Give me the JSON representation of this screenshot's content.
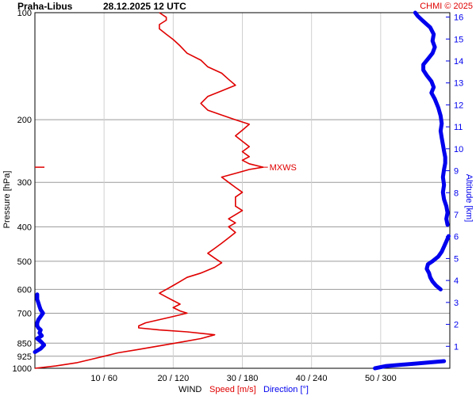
{
  "header": {
    "station": "Praha-Libus",
    "datetime": "28.12.2025 12 UTC",
    "credit": "CHMI © 2025"
  },
  "chart_data": {
    "type": "line",
    "title": "Praha-Libus 28.12.2025 12 UTC",
    "ylabel": "Pressure [hPa]",
    "y2label": "Altitude [km]",
    "xlabel_parts": {
      "wind": "WIND",
      "speed": "Speed [m/s]",
      "direction": "Direction [°]"
    },
    "x_speed_range": [
      0,
      60
    ],
    "x_direction_range": [
      0,
      360
    ],
    "y_pressure_range": [
      1000,
      100
    ],
    "y_scale": "log",
    "grid": true,
    "pressure_ticks": [
      "100",
      "200",
      "300",
      "400",
      "500",
      "600",
      "700",
      "850",
      "925",
      "1000"
    ],
    "x_ticks": [
      "10 / 60",
      "20 / 120",
      "30 / 180",
      "40 / 240",
      "50 / 300"
    ],
    "altitude_ticks": [
      "1",
      "2",
      "3",
      "4",
      "5",
      "6",
      "7",
      "8",
      "9",
      "10",
      "11",
      "12",
      "13",
      "14",
      "15",
      "16"
    ],
    "annotation": {
      "label": "MXWS",
      "pressure": 272,
      "speed": 33
    },
    "series": [
      {
        "name": "Speed [m/s]",
        "color": "#e00000",
        "points": [
          [
            1000,
            0
          ],
          [
            985,
            3
          ],
          [
            965,
            6
          ],
          [
            945,
            8
          ],
          [
            925,
            10
          ],
          [
            905,
            12
          ],
          [
            885,
            15
          ],
          [
            865,
            18
          ],
          [
            845,
            21
          ],
          [
            825,
            24
          ],
          [
            805,
            26
          ],
          [
            790,
            22
          ],
          [
            780,
            18
          ],
          [
            770,
            15
          ],
          [
            760,
            15
          ],
          [
            745,
            16
          ],
          [
            730,
            18
          ],
          [
            715,
            20
          ],
          [
            700,
            22
          ],
          [
            690,
            21
          ],
          [
            675,
            20
          ],
          [
            660,
            21
          ],
          [
            645,
            20
          ],
          [
            630,
            19
          ],
          [
            615,
            18
          ],
          [
            600,
            19
          ],
          [
            585,
            20
          ],
          [
            570,
            21
          ],
          [
            555,
            22
          ],
          [
            540,
            24
          ],
          [
            520,
            26
          ],
          [
            505,
            27
          ],
          [
            490,
            26
          ],
          [
            475,
            25
          ],
          [
            460,
            26
          ],
          [
            445,
            27
          ],
          [
            430,
            28
          ],
          [
            415,
            29
          ],
          [
            400,
            28
          ],
          [
            390,
            29
          ],
          [
            380,
            28
          ],
          [
            370,
            29
          ],
          [
            360,
            30
          ],
          [
            350,
            29
          ],
          [
            340,
            29
          ],
          [
            330,
            29
          ],
          [
            320,
            30
          ],
          [
            310,
            29
          ],
          [
            300,
            28
          ],
          [
            290,
            27
          ],
          [
            283,
            29
          ],
          [
            276,
            31
          ],
          [
            272,
            33
          ],
          [
            266,
            31
          ],
          [
            260,
            30
          ],
          [
            254,
            31
          ],
          [
            246,
            30
          ],
          [
            238,
            31
          ],
          [
            230,
            30
          ],
          [
            222,
            29
          ],
          [
            214,
            30
          ],
          [
            206,
            31
          ],
          [
            200,
            29
          ],
          [
            194,
            27
          ],
          [
            188,
            25
          ],
          [
            180,
            24
          ],
          [
            172,
            25
          ],
          [
            166,
            27
          ],
          [
            160,
            29
          ],
          [
            154,
            28
          ],
          [
            148,
            27
          ],
          [
            142,
            25
          ],
          [
            136,
            24
          ],
          [
            130,
            22
          ],
          [
            124,
            21
          ],
          [
            119,
            20
          ],
          [
            115,
            19
          ],
          [
            111,
            18
          ],
          [
            108,
            18
          ],
          [
            105,
            19
          ],
          [
            103,
            19
          ],
          [
            100,
            18
          ]
        ]
      },
      {
        "name": "Direction [°]",
        "color": "#0000ee",
        "points": [
          [
            1000,
            295
          ],
          [
            985,
            305
          ],
          [
            970,
            330
          ],
          [
            955,
            355
          ],
          [
            945,
            360
          ],
          [
            925,
            345
          ],
          [
            900,
            0
          ],
          [
            880,
            5
          ],
          [
            860,
            8
          ],
          [
            840,
            5
          ],
          [
            825,
            2
          ],
          [
            810,
            6
          ],
          [
            795,
            4
          ],
          [
            780,
            5
          ],
          [
            770,
            3
          ],
          [
            760,
            2
          ],
          [
            745,
            2
          ],
          [
            730,
            3
          ],
          [
            715,
            5
          ],
          [
            700,
            7
          ],
          [
            685,
            5
          ],
          [
            670,
            4
          ],
          [
            655,
            3
          ],
          [
            640,
            2
          ],
          [
            620,
            2
          ],
          [
            600,
            352
          ],
          [
            585,
            348
          ],
          [
            570,
            345
          ],
          [
            555,
            343
          ],
          [
            540,
            342
          ],
          [
            525,
            340
          ],
          [
            510,
            341
          ],
          [
            500,
            345
          ],
          [
            485,
            350
          ],
          [
            470,
            353
          ],
          [
            455,
            355
          ],
          [
            440,
            357
          ],
          [
            425,
            359
          ],
          [
            410,
            360
          ],
          [
            395,
            358
          ],
          [
            380,
            357
          ],
          [
            365,
            358
          ],
          [
            350,
            357
          ],
          [
            335,
            355
          ],
          [
            320,
            354
          ],
          [
            305,
            355
          ],
          [
            290,
            354
          ],
          [
            276,
            355
          ],
          [
            265,
            356
          ],
          [
            255,
            356
          ],
          [
            245,
            355
          ],
          [
            235,
            354
          ],
          [
            225,
            353
          ],
          [
            215,
            352
          ],
          [
            205,
            353
          ],
          [
            195,
            352
          ],
          [
            185,
            350
          ],
          [
            175,
            347
          ],
          [
            168,
            344
          ],
          [
            162,
            346
          ],
          [
            156,
            344
          ],
          [
            150,
            340
          ],
          [
            145,
            337
          ],
          [
            140,
            337
          ],
          [
            135,
            341
          ],
          [
            130,
            345
          ],
          [
            125,
            347
          ],
          [
            120,
            345
          ],
          [
            115,
            346
          ],
          [
            110,
            343
          ],
          [
            105,
            336
          ],
          [
            102,
            332
          ],
          [
            100,
            330
          ]
        ]
      }
    ]
  }
}
